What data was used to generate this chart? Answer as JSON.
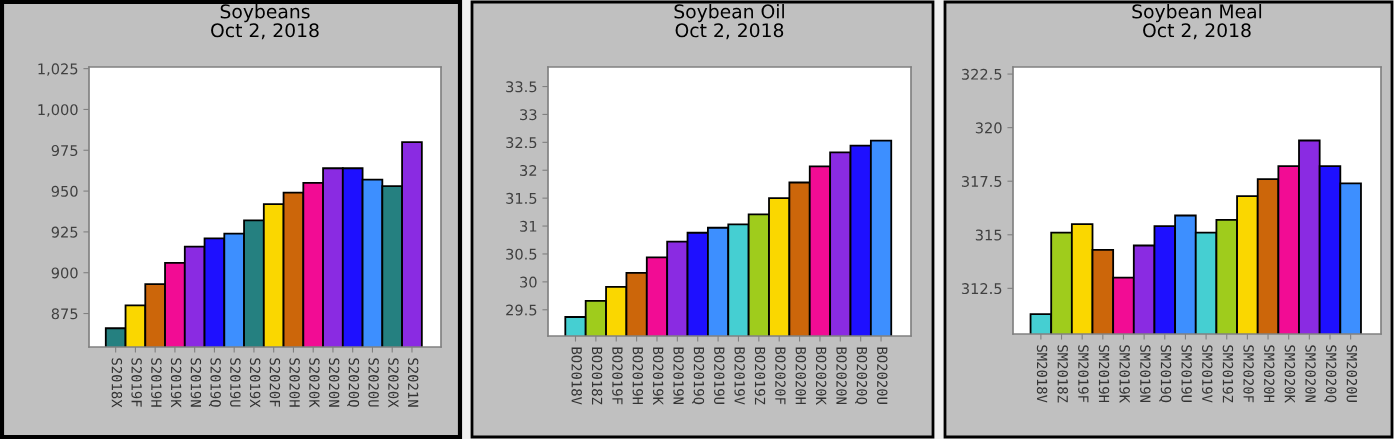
{
  "chart_data": [
    {
      "type": "bar",
      "title": "Soybeans",
      "subtitle": "Oct 2, 2018",
      "categories": [
        "S2018X",
        "S2019F",
        "S2019H",
        "S2019K",
        "S2019N",
        "S2019Q",
        "S2019U",
        "S2019X",
        "S2020F",
        "S2020H",
        "S2020K",
        "S2020N",
        "S2020Q",
        "S2020U",
        "S2020X",
        "S2021N"
      ],
      "values": [
        866,
        880,
        893,
        906,
        916,
        921,
        924,
        932,
        942,
        949,
        955,
        964,
        964,
        957,
        953,
        980
      ],
      "colors": [
        "#258080",
        "#fad700",
        "#cc660a",
        "#f20c94",
        "#8a2be2",
        "#1e10ff",
        "#3d8fff",
        "#258080",
        "#fad700",
        "#cc660a",
        "#f20c94",
        "#8a2be2",
        "#1e10ff",
        "#3d8fff",
        "#258080",
        "#8a2be2"
      ],
      "ylim": [
        854.5,
        1026
      ],
      "yticks": [
        875,
        900,
        925,
        950,
        975,
        {
          "value": 1000,
          "label": "1,000"
        },
        {
          "value": 1025,
          "label": "1,025"
        }
      ],
      "grid": false,
      "legend": false
    },
    {
      "type": "bar",
      "title": "Soybean Oil",
      "subtitle": "Oct 2, 2018",
      "categories": [
        "BO2018V",
        "BO2018Z",
        "BO2019F",
        "BO2019H",
        "BO2019K",
        "BO2019N",
        "BO2019Q",
        "BO2019U",
        "BO2019V",
        "BO2019Z",
        "BO2020F",
        "BO2020H",
        "BO2020K",
        "BO2020N",
        "BO2020Q",
        "BO2020U"
      ],
      "values": [
        29.37,
        29.66,
        29.91,
        30.16,
        30.44,
        30.72,
        30.88,
        30.97,
        31.03,
        31.21,
        31.5,
        31.78,
        32.07,
        32.32,
        32.44,
        32.53
      ],
      "colors": [
        "#45cfd2",
        "#9fcc1c",
        "#fad700",
        "#cc660a",
        "#f20c94",
        "#8a2be2",
        "#1e10ff",
        "#3d8fff",
        "#45cfd2",
        "#9fcc1c",
        "#fad700",
        "#cc660a",
        "#f20c94",
        "#8a2be2",
        "#1e10ff",
        "#3d8fff"
      ],
      "ylim": [
        29.03,
        33.85
      ],
      "yticks": [
        29.5,
        30,
        30.5,
        31,
        31.5,
        32,
        32.5,
        33,
        33.5
      ],
      "grid": false,
      "legend": false
    },
    {
      "type": "bar",
      "title": "Soybean Meal",
      "subtitle": "Oct 2, 2018",
      "categories": [
        "SM2018V",
        "SM2018Z",
        "SM2019F",
        "SM2019H",
        "SM2019K",
        "SM2019N",
        "SM2019Q",
        "SM2019U",
        "SM2019V",
        "SM2019Z",
        "SM2020F",
        "SM2020H",
        "SM2020K",
        "SM2020N",
        "SM2020Q",
        "SM2020U"
      ],
      "values": [
        311.3,
        315.1,
        315.5,
        314.3,
        313.0,
        314.5,
        315.4,
        315.9,
        315.1,
        315.7,
        316.8,
        317.6,
        318.2,
        319.4,
        318.2,
        317.4
      ],
      "colors": [
        "#45cfd2",
        "#9fcc1c",
        "#fad700",
        "#cc660a",
        "#f20c94",
        "#8a2be2",
        "#1e10ff",
        "#3d8fff",
        "#45cfd2",
        "#9fcc1c",
        "#fad700",
        "#cc660a",
        "#f20c94",
        "#8a2be2",
        "#1e10ff",
        "#3d8fff"
      ],
      "ylim": [
        310.37,
        322.83
      ],
      "yticks": [
        312.5,
        315,
        317.5,
        320,
        322.5
      ],
      "grid": false,
      "legend": false
    }
  ]
}
